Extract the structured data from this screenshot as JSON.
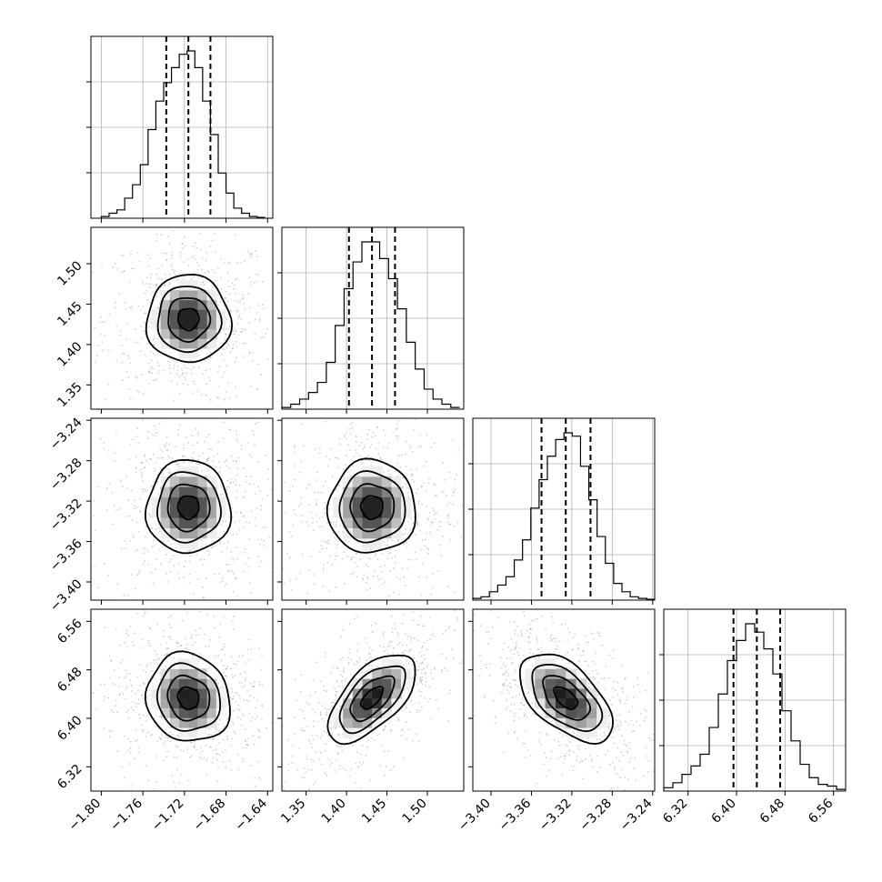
{
  "chart_data": {
    "type": "corner",
    "title": "",
    "n_params": 4,
    "params": [
      {
        "label": "",
        "range": [
          -1.81,
          -1.635
        ],
        "ticks": [
          -1.8,
          -1.76,
          -1.72,
          -1.68,
          -1.64
        ],
        "tick_labels": [
          "−1.80",
          "−1.76",
          "−1.72",
          "−1.68",
          "−1.64"
        ],
        "quantiles": [
          -1.7375,
          -1.7162,
          -1.695
        ],
        "hist": {
          "bin_start": -1.8,
          "bin_width": 0.0075,
          "counts": [
            0.01,
            0.03,
            0.05,
            0.12,
            0.2,
            0.32,
            0.53,
            0.7,
            0.81,
            0.9,
            0.98,
            1.0,
            0.9,
            0.7,
            0.5,
            0.27,
            0.15,
            0.06,
            0.03,
            0.01,
            0.005
          ]
        }
      },
      {
        "label": "",
        "range": [
          1.32,
          1.545
        ],
        "ticks": [
          1.35,
          1.4,
          1.45,
          1.5
        ],
        "tick_labels": [
          "1.35",
          "1.40",
          "1.45",
          "1.50"
        ],
        "quantiles": [
          1.403,
          1.4315,
          1.46
        ],
        "hist": {
          "bin_start": 1.32,
          "bin_width": 0.011,
          "counts": [
            0.01,
            0.03,
            0.06,
            0.1,
            0.16,
            0.28,
            0.5,
            0.72,
            0.88,
            1.0,
            1.0,
            0.9,
            0.78,
            0.6,
            0.4,
            0.24,
            0.12,
            0.06,
            0.03,
            0.01
          ]
        }
      },
      {
        "label": "",
        "range": [
          -3.418,
          -3.238
        ],
        "ticks": [
          -3.4,
          -3.36,
          -3.32,
          -3.28,
          -3.24
        ],
        "tick_labels": [
          "−3.40",
          "−3.36",
          "−3.32",
          "−3.28",
          "−3.24"
        ],
        "quantiles": [
          -3.35,
          -3.326,
          -3.3015
        ],
        "hist": {
          "bin_start": -3.418,
          "bin_width": 0.0082,
          "counts": [
            0.01,
            0.02,
            0.05,
            0.09,
            0.14,
            0.24,
            0.36,
            0.55,
            0.72,
            0.86,
            0.96,
            1.0,
            0.98,
            0.8,
            0.6,
            0.38,
            0.22,
            0.1,
            0.05,
            0.02,
            0.01,
            0.005
          ]
        }
      },
      {
        "label": "",
        "range": [
          6.28,
          6.58
        ],
        "ticks": [
          6.32,
          6.4,
          6.48,
          6.56
        ],
        "tick_labels": [
          "6.32",
          "6.40",
          "6.48",
          "6.56"
        ],
        "quantiles": [
          6.395,
          6.4335,
          6.472
        ],
        "hist": {
          "bin_start": 6.28,
          "bin_width": 0.015,
          "counts": [
            0.02,
            0.05,
            0.1,
            0.15,
            0.22,
            0.38,
            0.58,
            0.78,
            0.9,
            1.0,
            0.95,
            0.85,
            0.7,
            0.48,
            0.3,
            0.16,
            0.08,
            0.04,
            0.03,
            0.01
          ]
        }
      }
    ],
    "pairs": [
      {
        "row": 1,
        "col": 0,
        "correlation": 0.0
      },
      {
        "row": 2,
        "col": 0,
        "correlation": 0.0
      },
      {
        "row": 2,
        "col": 1,
        "correlation": 0.0
      },
      {
        "row": 3,
        "col": 0,
        "correlation": -0.1
      },
      {
        "row": 3,
        "col": 1,
        "correlation": 0.62
      },
      {
        "row": 3,
        "col": 2,
        "correlation": -0.55
      }
    ],
    "contour_levels_sigma": [
      0.5,
      1.0,
      1.5,
      2.0
    ],
    "grid": true,
    "histogram_y_ticks_labeled": false
  }
}
